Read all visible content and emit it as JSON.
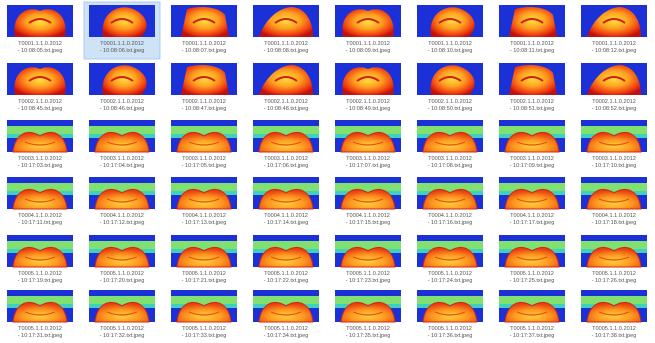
{
  "grid": {
    "rows": [
      [
        {
          "name": "T0001.1.1.0.2012",
          "time": "- 10:08:05.txt.jpeg"
        },
        {
          "name": "T0001.1.1.0.2012",
          "time": "- 10:08:06.txt.jpeg",
          "selected": true
        },
        {
          "name": "T0001.1.1.0.2012",
          "time": "- 10:08:07.txt.jpeg"
        },
        {
          "name": "T0001.1.1.0.2012",
          "time": "- 10:08:08.txt.jpeg"
        },
        {
          "name": "T0001.1.1.0.2012",
          "time": "- 10:08:09.txt.jpeg"
        },
        {
          "name": "T0001.1.1.0.2012",
          "time": "- 10:08:10.txt.jpeg"
        },
        {
          "name": "T0001.1.1.0.2012",
          "time": "- 10:08:11.txt.jpeg"
        },
        {
          "name": "T0001.1.1.0.2012",
          "time": "- 10:08:12.txt.jpeg"
        }
      ],
      [
        {
          "name": "T0002.1.1.0.2012",
          "time": "- 10:08:45.txt.jpeg"
        },
        {
          "name": "T0002.1.1.0.2012",
          "time": "- 10:08:46.txt.jpeg"
        },
        {
          "name": "T0002.1.1.0.2012",
          "time": "- 10:08:47.txt.jpeg"
        },
        {
          "name": "T0002.1.1.0.2012",
          "time": "- 10:08:48.txt.jpeg"
        },
        {
          "name": "T0002.1.1.0.2012",
          "time": "- 10:08:49.txt.jpeg"
        },
        {
          "name": "T0002.1.1.0.2012",
          "time": "- 10:08:50.txt.jpeg"
        },
        {
          "name": "T0002.1.1.0.2012",
          "time": "- 10:08:51.txt.jpeg"
        },
        {
          "name": "T0002.1.1.0.2012",
          "time": "- 10:08:52.txt.jpeg"
        }
      ],
      [
        {
          "name": "T0003.1.1.0.2012",
          "time": "- 10:17:03.txt.jpeg"
        },
        {
          "name": "T0003.1.1.0.2012",
          "time": "- 10:17:04.txt.jpeg"
        },
        {
          "name": "T0003.1.1.0.2012",
          "time": "- 10:17:05.txt.jpeg"
        },
        {
          "name": "T0003.1.1.0.2012",
          "time": "- 10:17:06.txt.jpeg"
        },
        {
          "name": "T0003.1.1.0.2012",
          "time": "- 10:17:07.txt.jpeg"
        },
        {
          "name": "T0003.1.1.0.2012",
          "time": "- 10:17:08.txt.jpeg"
        },
        {
          "name": "T0003.1.1.0.2012",
          "time": "- 10:17:09.txt.jpeg"
        },
        {
          "name": "T0003.1.1.0.2012",
          "time": "- 10:17:10.txt.jpeg"
        }
      ],
      [
        {
          "name": "T0004.1.1.0.2012",
          "time": "- 10:17:11.txt.jpeg"
        },
        {
          "name": "T0004.1.1.0.2012",
          "time": "- 10:17:12.txt.jpeg"
        },
        {
          "name": "T0004.1.1.0.2012",
          "time": "- 10:17:13.txt.jpeg"
        },
        {
          "name": "T0004.1.1.0.2012",
          "time": "- 10:17:14.txt.jpeg"
        },
        {
          "name": "T0004.1.1.0.2012",
          "time": "- 10:17:15.txt.jpeg"
        },
        {
          "name": "T0004.1.1.0.2012",
          "time": "- 10:17:16.txt.jpeg"
        },
        {
          "name": "T0004.1.1.0.2012",
          "time": "- 10:17:17.txt.jpeg"
        },
        {
          "name": "T0004.1.1.0.2012",
          "time": "- 10:17:18.txt.jpeg"
        }
      ],
      [
        {
          "name": "T0005.1.1.0.2012",
          "time": "- 10:17:19.txt.jpeg"
        },
        {
          "name": "T0005.1.1.0.2012",
          "time": "- 10:17:20.txt.jpeg"
        },
        {
          "name": "T0005.1.1.0.2012",
          "time": "- 10:17:21.txt.jpeg"
        },
        {
          "name": "T0005.1.1.0.2012",
          "time": "- 10:17:22.txt.jpeg"
        },
        {
          "name": "T0005.1.1.0.2012",
          "time": "- 10:17:23.txt.jpeg"
        },
        {
          "name": "T0005.1.1.0.2012",
          "time": "- 10:17:24.txt.jpeg"
        },
        {
          "name": "T0005.1.1.0.2012",
          "time": "- 10:17:25.txt.jpeg"
        },
        {
          "name": "T0005.1.1.0.2012",
          "time": "- 10:17:26.txt.jpeg"
        }
      ],
      [
        {
          "name": "T0005.1.1.0.2012",
          "time": "- 10:17:31.txt.jpeg"
        },
        {
          "name": "T0005.1.1.0.2012",
          "time": "- 10:17:32.txt.jpeg"
        },
        {
          "name": "T0005.1.1.0.2012",
          "time": "- 10:17:33.txt.jpeg"
        },
        {
          "name": "T0005.1.1.0.2012",
          "time": "- 10:17:34.txt.jpeg"
        },
        {
          "name": "T0005.1.1.0.2012",
          "time": "- 10:17:35.txt.jpeg"
        },
        {
          "name": "T0005.1.1.0.2012",
          "time": "- 10:17:36.txt.jpeg"
        },
        {
          "name": "T0005.1.1.0.2012",
          "time": "- 10:17:37.txt.jpeg"
        },
        {
          "name": "T0005.1.1.0.2012",
          "time": "- 10:17:38.txt.jpeg"
        }
      ]
    ]
  }
}
